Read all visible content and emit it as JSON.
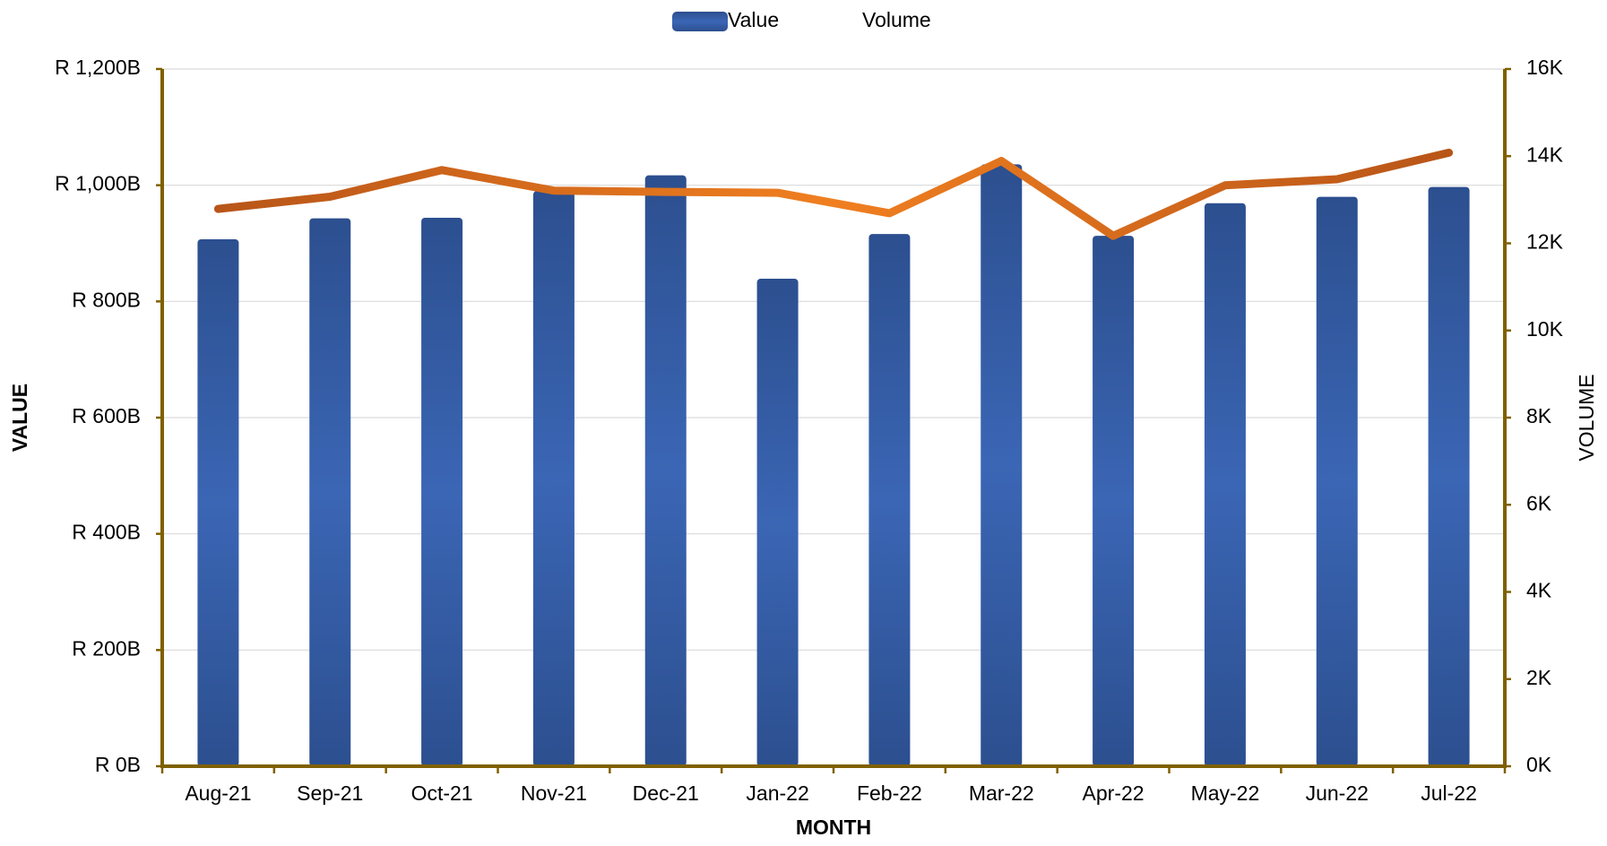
{
  "chart_data": {
    "type": "bar-line",
    "categories": [
      "Aug-21",
      "Sep-21",
      "Oct-21",
      "Nov-21",
      "Dec-21",
      "Jan-22",
      "Feb-22",
      "Mar-22",
      "Apr-22",
      "May-22",
      "Jun-22",
      "Jul-22"
    ],
    "x_label": "MONTH",
    "y_label": "VALUE",
    "y2_label": "VOLUME",
    "series": [
      {
        "name": "Value",
        "type": "bar",
        "color": "#3a64b0",
        "values": [
          907,
          943,
          944,
          990,
          1017,
          839,
          916,
          1036,
          913,
          969,
          980,
          997
        ]
      },
      {
        "name": "Volume",
        "type": "line",
        "axis": "y2",
        "color": "#e8701c",
        "values": [
          12790,
          13070,
          13680,
          13210,
          13180,
          13160,
          12690,
          13890,
          12170,
          13330,
          13470,
          14080
        ]
      }
    ],
    "ylim": [
      0,
      1200
    ],
    "yticks": [
      {
        "value": 0,
        "label": "R 0B"
      },
      {
        "value": 200,
        "label": "R 200B"
      },
      {
        "value": 400,
        "label": "R 400B"
      },
      {
        "value": 600,
        "label": "R 600B"
      },
      {
        "value": 800,
        "label": "R 800B"
      },
      {
        "value": 1000,
        "label": "R 1,000B"
      },
      {
        "value": 1200,
        "label": "R 1,200B"
      }
    ],
    "y2lim": [
      0,
      16000
    ],
    "y2ticks": [
      {
        "value": 0,
        "label": "0K"
      },
      {
        "value": 2000,
        "label": "2K"
      },
      {
        "value": 4000,
        "label": "4K"
      },
      {
        "value": 6000,
        "label": "6K"
      },
      {
        "value": 8000,
        "label": "8K"
      },
      {
        "value": 10000,
        "label": "10K"
      },
      {
        "value": 12000,
        "label": "12K"
      },
      {
        "value": 14000,
        "label": "14K"
      },
      {
        "value": 16000,
        "label": "16K"
      }
    ],
    "grid": true,
    "legend": "top"
  }
}
